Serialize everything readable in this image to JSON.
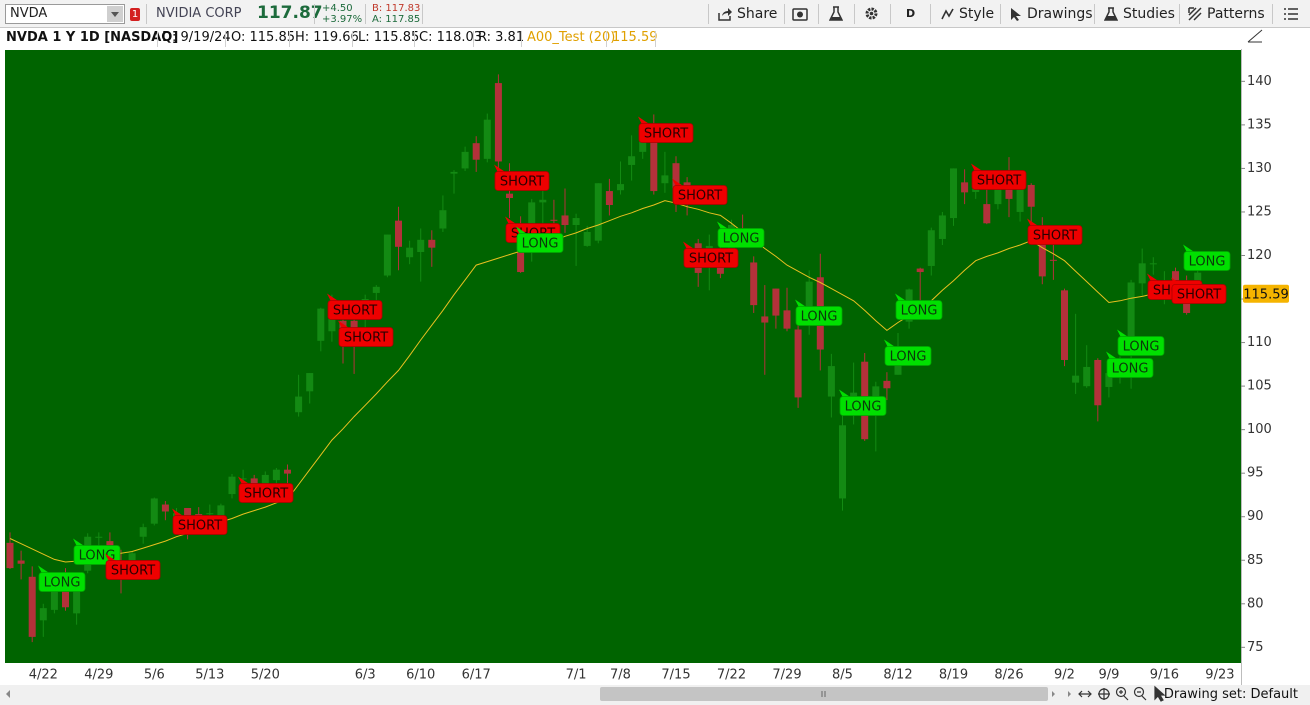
{
  "toolbar": {
    "symbol": "NVDA",
    "alert_count": "1",
    "company": "NVIDIA CORP",
    "last": "117.87",
    "change": "+4.50",
    "change_pct": "+3.97%",
    "bid": "B: 117.83",
    "ask": "A: 117.85",
    "share": "Share",
    "aggregation": "D",
    "style": "Style",
    "drawings": "Drawings",
    "studies": "Studies",
    "patterns": "Patterns"
  },
  "info_bar": {
    "title": "NVDA 1 Y 1D [NASDAQ]",
    "date": "D: 9/19/24",
    "open": "O: 115.85",
    "high": "H: 119.66",
    "low": "L: 115.85",
    "close": "C: 118.03",
    "range": "R: 3.81",
    "study": "A00_Test (20)",
    "study_value": "115.59"
  },
  "chart": {
    "type": "candlestick",
    "up_color": "#138a13",
    "down_color": "#b3313a",
    "ma_color": "#e8c020",
    "background": "#006400",
    "ylim": [
      73.2,
      143.6
    ],
    "yticks": [
      75,
      80,
      85,
      90,
      95,
      100,
      105,
      110,
      115,
      120,
      125,
      130,
      135,
      140
    ],
    "categories": [
      null,
      null,
      null,
      "4/22",
      null,
      null,
      null,
      null,
      "4/29",
      null,
      null,
      null,
      null,
      "5/6",
      null,
      null,
      null,
      null,
      "5/13",
      null,
      null,
      null,
      null,
      "5/20",
      null,
      null,
      null,
      null,
      null,
      null,
      null,
      null,
      "6/3",
      null,
      null,
      null,
      null,
      "6/10",
      null,
      null,
      null,
      null,
      "6/17",
      null,
      null,
      null,
      null,
      null,
      null,
      null,
      null,
      "7/1",
      null,
      null,
      null,
      "7/8",
      null,
      null,
      null,
      null,
      "7/15",
      null,
      null,
      null,
      null,
      "7/22",
      null,
      null,
      null,
      null,
      "7/29",
      null,
      null,
      null,
      null,
      "8/5",
      null,
      null,
      null,
      null,
      "8/12",
      null,
      null,
      null,
      null,
      "8/19",
      null,
      null,
      null,
      null,
      "8/26",
      null,
      null,
      null,
      null,
      "9/2",
      null,
      null,
      null,
      "9/9",
      null,
      null,
      null,
      null,
      "9/16",
      null,
      null,
      null,
      null,
      "9/23"
    ],
    "open": [
      87.0,
      84.97,
      83.1,
      78.1,
      79.3,
      83.4,
      78.9,
      83.8,
      87.6,
      87.2,
      85.0,
      84.9,
      87.7,
      89.2,
      91.4,
      89.4,
      91.0,
      90.3,
      90.4,
      89.7,
      92.6,
      94.3,
      94.4,
      93.4,
      94.2,
      95.4,
      102.0,
      104.4,
      110.2,
      111.3,
      112.5,
      112.5,
      113.6,
      115.7,
      117.7,
      124.0,
      119.8,
      120.4,
      121.8,
      123.1,
      129.4,
      130.0,
      132.9,
      131.1,
      139.8,
      127.1,
      123.2,
      121.2,
      126.1,
      124.1,
      124.6,
      123.5,
      121.1,
      121.7,
      127.4,
      127.5,
      130.4,
      131.9,
      134.0,
      128.3,
      130.6,
      128.4,
      121.4,
      120.4,
      120.4,
      120.4,
      122.8,
      119.2,
      113.0,
      116.2,
      113.7,
      111.5,
      112.9,
      117.5,
      103.8,
      92.1,
      103.8,
      107.8,
      102.0,
      105.6,
      106.3,
      112.4,
      118.5,
      118.8,
      121.9,
      124.3,
      128.4,
      127.3,
      125.9,
      125.9,
      129.6,
      125.0,
      128.1,
      121.4,
      119.5,
      116.0,
      105.4,
      104.99,
      108.0,
      104.9,
      107.8,
      109.4,
      116.8,
      119.1,
      116.8,
      118.2,
      115.9,
      115.85,
      null,
      null
    ],
    "high": [
      88.2,
      86.1,
      84.3,
      80.0,
      82.5,
      84.1,
      83.4,
      88.1,
      88.2,
      88.2,
      86.2,
      86.0,
      89.2,
      92.2,
      91.8,
      91.0,
      91.0,
      91.1,
      91.4,
      91.5,
      94.9,
      95.4,
      94.8,
      95.2,
      95.6,
      96.0,
      106.3,
      106.5,
      114.0,
      115.5,
      114.4,
      112.7,
      115.5,
      116.6,
      122.4,
      125.6,
      121.7,
      123.1,
      122.9,
      126.9,
      129.8,
      132.5,
      133.7,
      136.3,
      140.8,
      130.6,
      124.5,
      126.5,
      128.1,
      126.4,
      127.7,
      124.8,
      123.4,
      128.3,
      128.8,
      130.8,
      133.8,
      135.1,
      136.2,
      131.9,
      131.4,
      129.0,
      121.9,
      122.4,
      121.6,
      124.1,
      124.7,
      119.9,
      116.6,
      116.2,
      116.3,
      111.99,
      118.3,
      120.2,
      108.7,
      103.4,
      107.7,
      108.8,
      105.5,
      106.6,
      111.1,
      116.2,
      118.6,
      123.2,
      125.0,
      130.0,
      129.9,
      129.4,
      128.7,
      129.6,
      131.3,
      129.2,
      128.3,
      124.4,
      121.8,
      116.2,
      113.3,
      109.7,
      108.2,
      106.6,
      108.4,
      117.2,
      120.8,
      119.8,
      118.2,
      118.6,
      117.7,
      119.66,
      null,
      null
    ],
    "low": [
      84.0,
      82.8,
      75.6,
      76.2,
      78.9,
      79.2,
      77.6,
      83.5,
      85.2,
      85.9,
      81.2,
      83.3,
      86.9,
      89.0,
      89.6,
      88.8,
      87.4,
      89.3,
      90.0,
      89.3,
      92.1,
      93.4,
      92.1,
      93.0,
      93.1,
      93.0,
      101.5,
      103.0,
      109.0,
      110.1,
      107.6,
      106.4,
      111.0,
      114.0,
      117.5,
      118.3,
      119.0,
      117.0,
      118.7,
      122.7,
      127.1,
      129.7,
      129.6,
      130.7,
      129.5,
      124.3,
      118.0,
      119.3,
      122.6,
      122.9,
      122.6,
      118.8,
      121.0,
      121.4,
      124.6,
      127.0,
      128.6,
      131.1,
      127.0,
      127.2,
      125.0,
      124.6,
      116.4,
      116.0,
      117.4,
      119.9,
      122.5,
      113.4,
      106.3,
      111.6,
      111.3,
      102.5,
      110.9,
      106.8,
      101.4,
      90.7,
      100.6,
      98.7,
      97.5,
      103.4,
      106.3,
      111.6,
      114.7,
      117.7,
      121.2,
      123.4,
      125.9,
      126.5,
      123.6,
      125.3,
      124.4,
      123.9,
      122.6,
      116.7,
      117.2,
      107.3,
      104.1,
      104.8,
      100.95,
      103.7,
      105.3,
      104.7,
      115.4,
      117.8,
      114.4,
      114.6,
      113.2,
      115.85,
      null,
      null
    ],
    "close": [
      84.1,
      84.6,
      76.2,
      79.5,
      82.4,
      79.6,
      82.6,
      87.7,
      87.7,
      86.4,
      83.0,
      85.8,
      88.8,
      92.1,
      90.6,
      90.4,
      88.7,
      89.9,
      90.4,
      91.3,
      94.6,
      94.4,
      92.5,
      94.8,
      95.4,
      94.95,
      103.8,
      106.5,
      113.9,
      114.8,
      110.5,
      109.6,
      115.0,
      116.4,
      122.4,
      121.0,
      120.9,
      121.8,
      120.9,
      125.2,
      129.6,
      131.9,
      131.0,
      135.6,
      130.8,
      126.6,
      118.1,
      126.1,
      126.4,
      124.0,
      123.5,
      124.3,
      122.7,
      128.3,
      125.8,
      128.2,
      131.4,
      134.9,
      127.4,
      129.2,
      126.1,
      126.4,
      118.0,
      121.1,
      117.9,
      123.5,
      122.6,
      114.3,
      112.3,
      113.1,
      111.6,
      103.7,
      117.0,
      109.2,
      107.3,
      100.5,
      104.25,
      98.9,
      104.97,
      104.75,
      109.0,
      116.1,
      118.1,
      122.9,
      124.6,
      130.0,
      127.25,
      128.5,
      123.7,
      129.4,
      126.5,
      128.3,
      125.6,
      117.6,
      119.4,
      108.0,
      106.2,
      107.2,
      102.8,
      106.5,
      108.1,
      116.9,
      119.1,
      119.1,
      117.0,
      115.6,
      113.4,
      118.03,
      null,
      null
    ],
    "ma": [
      87.5,
      86.9,
      86.3,
      85.7,
      85.1,
      84.8,
      84.9,
      85.1,
      85.3,
      85.5,
      85.8,
      86.0,
      86.4,
      86.8,
      87.2,
      87.7,
      88.1,
      88.5,
      88.9,
      89.4,
      89.8,
      90.3,
      90.7,
      91.1,
      91.6,
      92.0,
      93.7,
      95.4,
      97.1,
      98.8,
      100.1,
      101.5,
      102.8,
      104.1,
      105.5,
      106.8,
      108.5,
      110.3,
      112.0,
      113.7,
      115.5,
      117.2,
      118.9,
      119.3,
      119.7,
      120.1,
      120.5,
      120.9,
      121.3,
      121.7,
      122.2,
      122.6,
      123.1,
      123.5,
      124.0,
      124.5,
      124.9,
      125.4,
      125.8,
      126.3,
      126.0,
      125.6,
      125.3,
      124.9,
      124.6,
      123.7,
      122.7,
      121.8,
      120.8,
      119.9,
      118.9,
      118.2,
      117.5,
      116.9,
      116.2,
      115.5,
      114.8,
      113.7,
      112.5,
      111.4,
      112.3,
      113.1,
      114.0,
      114.8,
      116.0,
      117.1,
      118.3,
      119.4,
      119.9,
      120.3,
      120.8,
      121.2,
      121.7,
      120.9,
      120.2,
      119.4,
      118.2,
      117.0,
      115.8,
      114.6,
      114.8,
      115.1,
      115.3,
      115.6,
      115.8,
      115.7,
      115.7,
      115.6,
      null,
      null
    ],
    "signals": [
      "LONG",
      "LONG",
      "SHORT",
      "SHORT",
      "SHORT",
      "SHORT",
      "SHORT",
      "SHORT",
      "SHORT",
      "LONG",
      "SHORT",
      "SHORT",
      "SHORT",
      "LONG",
      "LONG",
      "LONG",
      "LONG",
      "LONG",
      "SHORT",
      "SHORT",
      "LONG",
      "LONG",
      "SHORT",
      "SHORT",
      "LONG"
    ]
  },
  "status": {
    "drawing_set": "Drawing set: Default"
  }
}
